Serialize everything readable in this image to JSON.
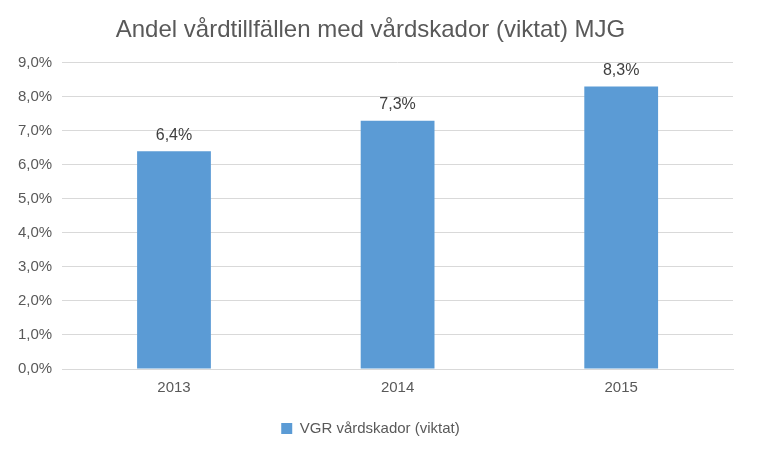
{
  "chart_data": {
    "type": "bar",
    "title": "Andel vårdtillfällen med vårdskador (viktat) MJG",
    "categories": [
      "2013",
      "2014",
      "2015"
    ],
    "series": [
      {
        "name": "VGR vårdskador (viktat)",
        "color": "#5b9bd5",
        "values": [
          6.4,
          7.3,
          8.3
        ],
        "value_labels": [
          "6,4%",
          "7,3%",
          "8,3%"
        ]
      }
    ],
    "ylim": [
      0,
      9
    ],
    "yticks": [
      {
        "value": 0,
        "label": "0,0%"
      },
      {
        "value": 1,
        "label": "1,0%"
      },
      {
        "value": 2,
        "label": "2,0%"
      },
      {
        "value": 3,
        "label": "3,0%"
      },
      {
        "value": 4,
        "label": "4,0%"
      },
      {
        "value": 5,
        "label": "5,0%"
      },
      {
        "value": 6,
        "label": "6,0%"
      },
      {
        "value": 7,
        "label": "7,0%"
      },
      {
        "value": 8,
        "label": "8,0%"
      },
      {
        "value": 9,
        "label": "9,0%"
      }
    ],
    "grid": true,
    "legend": "bottom",
    "data_labels": true
  }
}
